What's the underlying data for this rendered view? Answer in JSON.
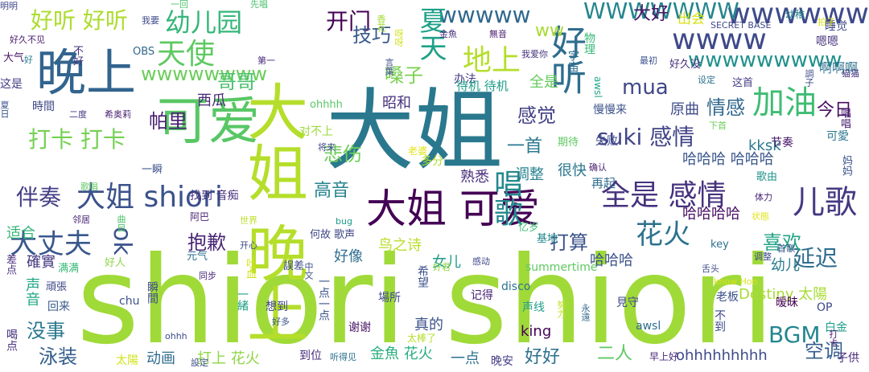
{
  "words": [
    {
      "text": "shiori shiori",
      "color": "#a0da39"
    },
    {
      "text": "大姐",
      "color": "#2a788e"
    },
    {
      "text": "大姐 晚上",
      "color": "#b5de2b"
    },
    {
      "text": "晚上",
      "color": "#32648e"
    },
    {
      "text": "可爱",
      "color": "#58c765"
    },
    {
      "text": "大姐 可爱",
      "color": "#440154"
    },
    {
      "text": "大姐 shiori",
      "color": "#3b528b"
    },
    {
      "text": "好听",
      "color": "#2e6d8e"
    },
    {
      "text": "wwwww",
      "color": "#31688e"
    },
    {
      "text": "wwww",
      "color": "#3e4989"
    },
    {
      "text": "wwwwww",
      "color": "#3e4a89"
    },
    {
      "text": "WWWWWWW",
      "color": "#25858e"
    },
    {
      "text": "wwwwwwwww",
      "color": "#21918c"
    },
    {
      "text": "wwwwwwww",
      "color": "#6ccd5a"
    },
    {
      "text": "ww",
      "color": "#a8db34"
    },
    {
      "text": "夏天",
      "color": "#1fa188"
    },
    {
      "text": "加油",
      "color": "#3fbc73"
    },
    {
      "text": "儿歌",
      "color": "#443983"
    },
    {
      "text": "天使",
      "color": "#5ec962"
    },
    {
      "text": "地上",
      "color": "#b5de2b"
    },
    {
      "text": "幼儿园",
      "color": "#35b779"
    },
    {
      "text": "开门",
      "color": "#440154"
    },
    {
      "text": "好听 好听",
      "color": "#addc30"
    },
    {
      "text": "全是 感情",
      "color": "#46327e"
    },
    {
      "text": "唱歌",
      "color": "#23898e"
    },
    {
      "text": "大丈夫",
      "color": "#38588c"
    },
    {
      "text": "ok",
      "color": "#3b518b"
    },
    {
      "text": "花火",
      "color": "#2c728e"
    },
    {
      "text": "BGM",
      "color": "#24868e"
    },
    {
      "text": "mua",
      "color": "#3f4788"
    },
    {
      "text": "suki 感情",
      "color": "#414487"
    },
    {
      "text": "打卡 打卡",
      "color": "#75d054"
    },
    {
      "text": "伴奏",
      "color": "#433e85"
    },
    {
      "text": "延迟",
      "color": "#2f6c8e"
    },
    {
      "text": "哥哥",
      "color": "#4ac16d"
    },
    {
      "text": "帕里",
      "color": "#481f70"
    },
    {
      "text": "抱歉",
      "color": "#482475"
    },
    {
      "text": "技巧",
      "color": "#38598c"
    },
    {
      "text": "悲伤",
      "color": "#6ece58"
    },
    {
      "text": "嗓子",
      "color": "#7ad151"
    },
    {
      "text": "感觉",
      "color": "#424086"
    },
    {
      "text": "情感",
      "color": "#31688e"
    },
    {
      "text": "喜欢",
      "color": "#20a386"
    },
    {
      "text": "打算",
      "color": "#3b528b"
    },
    {
      "text": "没事",
      "color": "#2a788e"
    },
    {
      "text": "泳装",
      "color": "#355f8d"
    },
    {
      "text": "空调",
      "color": "#365c8d"
    },
    {
      "text": "大好",
      "color": "#481668"
    },
    {
      "text": "出会",
      "color": "#d8e219"
    },
    {
      "text": "好好",
      "color": "#2d708e"
    },
    {
      "text": "二人",
      "color": "#5ec962"
    },
    {
      "text": "高音",
      "color": "#26828e"
    },
    {
      "text": "原曲",
      "color": "#3e4a89"
    },
    {
      "text": "今日",
      "color": "#470d60"
    },
    {
      "text": "西瓜",
      "color": "#482878"
    },
    {
      "text": "一首",
      "color": "#2a788e"
    },
    {
      "text": "昭和",
      "color": "#46337e"
    },
    {
      "text": "全是",
      "color": "#65cb5e"
    },
    {
      "text": "熟悉",
      "color": "#472d7b"
    },
    {
      "text": "调整",
      "color": "#26818e"
    },
    {
      "text": "很快",
      "color": "#2a768e"
    },
    {
      "text": "幼儿",
      "color": "#287d8e"
    },
    {
      "text": "kksk",
      "color": "#2a788e"
    },
    {
      "text": "哈哈哈 哈哈哈",
      "color": "#39568c"
    },
    {
      "text": "哈哈哈哈",
      "color": "#471164"
    },
    {
      "text": "哈哈哈",
      "color": "#3b528b"
    },
    {
      "text": "Destiny 太陽",
      "color": "#a8db34"
    },
    {
      "text": "ohhhhhhhhh",
      "color": "#3e4a89"
    },
    {
      "text": "打上 花火",
      "color": "#8ed645"
    },
    {
      "text": "金魚 花火",
      "color": "#29af7f"
    },
    {
      "text": "一点",
      "color": "#2c718e"
    },
    {
      "text": "动画",
      "color": "#2f6b8e"
    },
    {
      "text": "声音",
      "color": "#22a785"
    },
    {
      "text": "確實",
      "color": "#453882"
    },
    {
      "text": "适合",
      "color": "#35b779"
    },
    {
      "text": "鸟之诗",
      "color": "#b8de29"
    },
    {
      "text": "好像",
      "color": "#2e6e8e"
    },
    {
      "text": "女儿",
      "color": "#1f9a8a"
    },
    {
      "text": "summertime",
      "color": "#5ec962"
    },
    {
      "text": "记得",
      "color": "#482173"
    },
    {
      "text": "真的",
      "color": "#3b528b"
    },
    {
      "text": "谢谢",
      "color": "#471365"
    },
    {
      "text": "晚安",
      "color": "#433d84"
    },
    {
      "text": "好久没",
      "color": "#46307e"
    },
    {
      "text": "宇宙",
      "color": "#2e6f8e"
    },
    {
      "text": "好久不见",
      "color": "#481b6d"
    },
    {
      "text": "大气",
      "color": "#481769"
    },
    {
      "text": "这是",
      "color": "#433e85"
    },
    {
      "text": "時間",
      "color": "#3f4889"
    },
    {
      "text": "二度",
      "color": "#453581"
    },
    {
      "text": "希奥莉",
      "color": "#481f70"
    },
    {
      "text": "第一",
      "color": "#472a7a"
    },
    {
      "text": "OBS",
      "color": "#31688e"
    },
    {
      "text": "不好",
      "color": "#46307e"
    },
    {
      "text": "我要",
      "color": "#3e4a89"
    },
    {
      "text": "一回",
      "color": "#4ec36b"
    },
    {
      "text": "先唱",
      "color": "#4ac16d"
    },
    {
      "text": "香花",
      "color": "#a5db36"
    },
    {
      "text": "呀呀",
      "color": "#d2e21b"
    },
    {
      "text": "金魚",
      "color": "#472d7b"
    },
    {
      "text": "無音",
      "color": "#481b6d"
    },
    {
      "text": "我爱你",
      "color": "#46327e"
    },
    {
      "text": "办法",
      "color": "#443a83"
    },
    {
      "text": "待机 待机",
      "color": "#1f9e89"
    },
    {
      "text": "言葉",
      "color": "#3e4c8a"
    },
    {
      "text": "awsl",
      "color": "#20a486"
    },
    {
      "text": "物理",
      "color": "#38b977"
    },
    {
      "text": "最初",
      "color": "#3b528b"
    },
    {
      "text": "设定",
      "color": "#2c718e"
    },
    {
      "text": "这首",
      "color": "#433d84"
    },
    {
      "text": "慢慢来",
      "color": "#3b528b"
    },
    {
      "text": "下首",
      "color": "#6ccd5a"
    },
    {
      "text": "可愛",
      "color": "#2a778e"
    },
    {
      "text": "节奏",
      "color": "#48186a"
    },
    {
      "text": "disco",
      "color": "#2c728e"
    },
    {
      "text": "老婆",
      "color": "#e2e418"
    },
    {
      "text": "对不上",
      "color": "#9bd93c"
    },
    {
      "text": "将来",
      "color": "#3f4889"
    },
    {
      "text": "ohhhh",
      "color": "#58c765"
    },
    {
      "text": "多分",
      "color": "#b5de2b"
    },
    {
      "text": "期待",
      "color": "#5ec962"
    },
    {
      "text": "失败",
      "color": "#3e4989"
    },
    {
      "text": "确认",
      "color": "#481f70"
    },
    {
      "text": "再起",
      "color": "#2e6d8e"
    },
    {
      "text": "体力",
      "color": "#482374"
    },
    {
      "text": "歌由",
      "color": "#20928c"
    },
    {
      "text": "妈妈",
      "color": "#3a548c"
    },
    {
      "text": "唱唱",
      "color": "#482071"
    },
    {
      "text": "猫猫",
      "color": "#46307e"
    },
    {
      "text": "調子",
      "color": "#3e4a89"
    },
    {
      "text": "啊啊啊",
      "color": "#2d718e"
    },
    {
      "text": "嗯嗯",
      "color": "#46327e"
    },
    {
      "text": "睡觉",
      "color": "#3f4889"
    },
    {
      "text": "拍子",
      "color": "#d8e219"
    },
    {
      "text": "幼稚",
      "color": "#26828e"
    },
    {
      "text": "SECRET BASE",
      "color": "#3f4889"
    },
    {
      "text": "明明",
      "color": "#404688"
    },
    {
      "text": "好",
      "color": "#27808e"
    },
    {
      "text": "夏日",
      "color": "#3b528b"
    },
    {
      "text": "歌唱",
      "color": "#5ec962"
    },
    {
      "text": "一瞬",
      "color": "#3b528b"
    },
    {
      "text": "找到 音痴",
      "color": "#46307e"
    },
    {
      "text": "邻居",
      "color": "#482475"
    },
    {
      "text": "曲目",
      "color": "#4ec36b"
    },
    {
      "text": "阿巴",
      "color": "#481f70"
    },
    {
      "text": "亿岁",
      "color": "#3fbc73"
    },
    {
      "text": "基地",
      "color": "#24878e"
    },
    {
      "text": "首歌",
      "color": "#3b528b"
    },
    {
      "text": "状態",
      "color": "#e2e418"
    },
    {
      "text": "key",
      "color": "#2c718e"
    },
    {
      "text": "调整",
      "color": "#3e4989"
    },
    {
      "text": "舌头",
      "color": "#3e4c8a"
    },
    {
      "text": "know Hoo",
      "color": "#d8e219"
    },
    {
      "text": "世界",
      "color": "#bddf26"
    },
    {
      "text": "何故 歌声",
      "color": "#3e4989"
    },
    {
      "text": "bug",
      "color": "#1f9a8a"
    },
    {
      "text": "感动",
      "color": "#3f4889"
    },
    {
      "text": "开心",
      "color": "#3e4a89"
    },
    {
      "text": "吐血",
      "color": "#d5e21a"
    },
    {
      "text": "誤差",
      "color": "#3e4989"
    },
    {
      "text": "元气",
      "color": "#2c728e"
    },
    {
      "text": "好人",
      "color": "#8ed645"
    },
    {
      "text": "满满",
      "color": "#38b977"
    },
    {
      "text": "差点",
      "color": "#472d7b"
    },
    {
      "text": "頑張",
      "color": "#3f4889"
    },
    {
      "text": "回来",
      "color": "#38598c"
    },
    {
      "text": "同步",
      "color": "#482878"
    },
    {
      "text": "中文",
      "color": "#3b528b"
    },
    {
      "text": "希望",
      "color": "#3b528b"
    },
    {
      "text": "好君",
      "color": "#8ed645"
    },
    {
      "text": "瞬間",
      "color": "#3e4a89"
    },
    {
      "text": "chu",
      "color": "#3b528b"
    },
    {
      "text": "想到",
      "color": "#404688"
    },
    {
      "text": "好多",
      "color": "#3b528b"
    },
    {
      "text": "一点一点",
      "color": "#3b528b"
    },
    {
      "text": "一緒",
      "color": "#1fa188"
    },
    {
      "text": "場所",
      "color": "#3e4989"
    },
    {
      "text": "声线",
      "color": "#1f9e89"
    },
    {
      "text": "努力",
      "color": "#c2df23"
    },
    {
      "text": "永遠",
      "color": "#31688e"
    },
    {
      "text": "見守",
      "color": "#3e4a89"
    },
    {
      "text": "老板",
      "color": "#3b528b"
    },
    {
      "text": "暧昧",
      "color": "#440154"
    },
    {
      "text": "OP",
      "color": "#3e4989"
    },
    {
      "text": "白金",
      "color": "#1f9e89"
    },
    {
      "text": "不到",
      "color": "#3e4989"
    },
    {
      "text": "早上好",
      "color": "#482878"
    },
    {
      "text": "子供",
      "color": "#482878"
    },
    {
      "text": "喝点",
      "color": "#46307e"
    },
    {
      "text": "ohhh",
      "color": "#3e4a89"
    },
    {
      "text": "太陽",
      "color": "#d2e21b"
    },
    {
      "text": "設定",
      "color": "#3e4a89"
    },
    {
      "text": "到位",
      "color": "#482878"
    },
    {
      "text": "听得见",
      "color": "#2c718e"
    },
    {
      "text": "太棒了",
      "color": "#b5de2b"
    },
    {
      "text": "awsl",
      "color": "#2e6d8e"
    },
    {
      "text": "king",
      "color": "#440154"
    },
    {
      "text": "打卡",
      "color": "#48196b"
    }
  ]
}
